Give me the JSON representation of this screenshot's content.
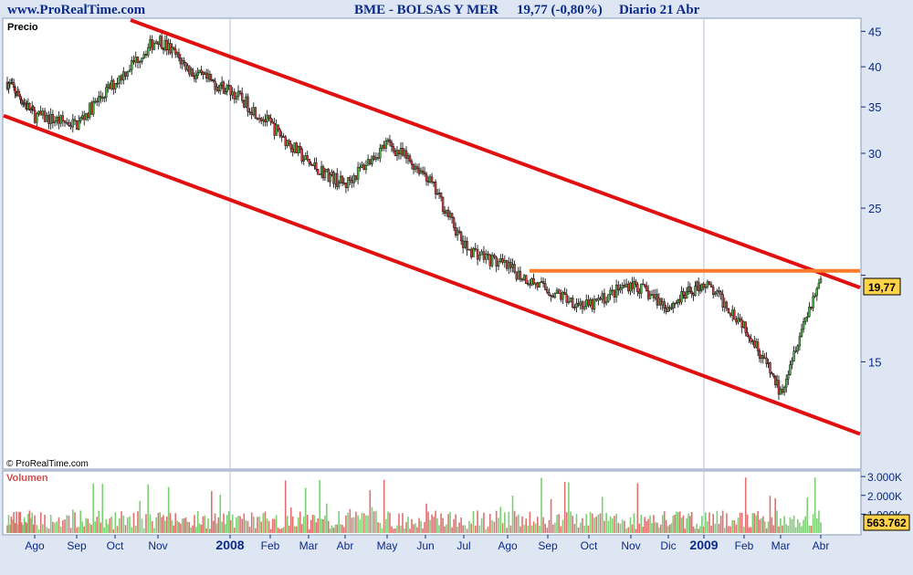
{
  "header": {
    "site": "www.ProRealTime.com",
    "symbol": "BME - BOLSAS Y MER",
    "price": "19,77 (-0,80%)",
    "period": "Diario  21 Abr"
  },
  "price_panel": {
    "label": "Precio",
    "copyright": "© ProRealTime.com",
    "last_price_tag": "19,77"
  },
  "volume_panel": {
    "label": "Volumen",
    "last_volume_tag": "563.762"
  },
  "colors": {
    "background": "#dde6f2",
    "panel": "#ffffff",
    "axis_text": "#0b2a8c",
    "channel_lines": "#e01010",
    "resistance_line": "#ff7a28",
    "candle_up": "#4fae4a",
    "candle_down": "#d04040",
    "volume_up": "#7ccf73",
    "volume_down": "#e07070",
    "tag_fill": "#ffd24a"
  },
  "chart_data": [
    {
      "type": "line",
      "subtype": "candlestick",
      "title": "BME - BOLSAS Y MER",
      "ylabel": "Precio",
      "y_scale": "log",
      "ylim": [
        10.5,
        47
      ],
      "y_ticks": [
        15,
        20,
        25,
        30,
        35,
        40,
        45
      ],
      "y_tick_labels": [
        "15",
        "",
        "25",
        "30",
        "35",
        "40",
        "45"
      ],
      "x_tick_labels": [
        "Ago",
        "Sep",
        "Oct",
        "Nov",
        "2008",
        "Feb",
        "Mar",
        "Abr",
        "May",
        "Jun",
        "Jul",
        "Ago",
        "Sep",
        "Oct",
        "Nov",
        "Dic",
        "2009",
        "Feb",
        "Mar",
        "Abr"
      ],
      "x_range": [
        "Jul 2007",
        "Abr 2009"
      ],
      "grid": "vertical lines at 2008 and 2009",
      "series": [
        {
          "name": "Precio",
          "x": [
            "Jul 2007",
            "Ago 2007",
            "Sep 2007",
            "Oct 2007",
            "Nov 2007",
            "Dic 2007",
            "2008",
            "Feb 2008",
            "Mar 2008",
            "Abr 2008",
            "May 2008",
            "Jun 2008",
            "Jul 2008",
            "Ago 2008",
            "Sep 2008",
            "Oct 2008",
            "Nov 2008",
            "Dic 2008",
            "2009",
            "Feb 2009",
            "Mar 2009",
            "Abr 2009"
          ],
          "values": [
            38,
            34,
            33,
            38,
            44,
            39,
            37,
            33,
            29,
            27,
            31,
            28,
            22,
            20.5,
            19,
            18,
            19.5,
            18,
            19.5,
            17,
            13.5,
            19.77
          ]
        }
      ],
      "annotations": [
        {
          "type": "trendline",
          "name": "canal superior",
          "from": [
            "Oct 2007",
            47
          ],
          "to": [
            "Abr 2009",
            19.2
          ]
        },
        {
          "type": "trendline",
          "name": "canal inferior",
          "from": [
            "Jul 2007",
            34
          ],
          "to": [
            "Abr 2009",
            11.8
          ]
        },
        {
          "type": "horizontal",
          "name": "resistencia",
          "value": 20.3,
          "from": "Ago 2008",
          "to": "Abr 2009"
        }
      ],
      "last_value": 19.77
    },
    {
      "type": "bar",
      "title": "Volumen",
      "y_ticks": [
        1000000,
        2000000,
        3000000
      ],
      "y_tick_labels": [
        "1.000K",
        "2.000K",
        "3.000K"
      ],
      "ylim": [
        0,
        3200000
      ],
      "last_value": 563762,
      "typical_range": [
        200000,
        1200000
      ],
      "peak": 3000000
    }
  ]
}
